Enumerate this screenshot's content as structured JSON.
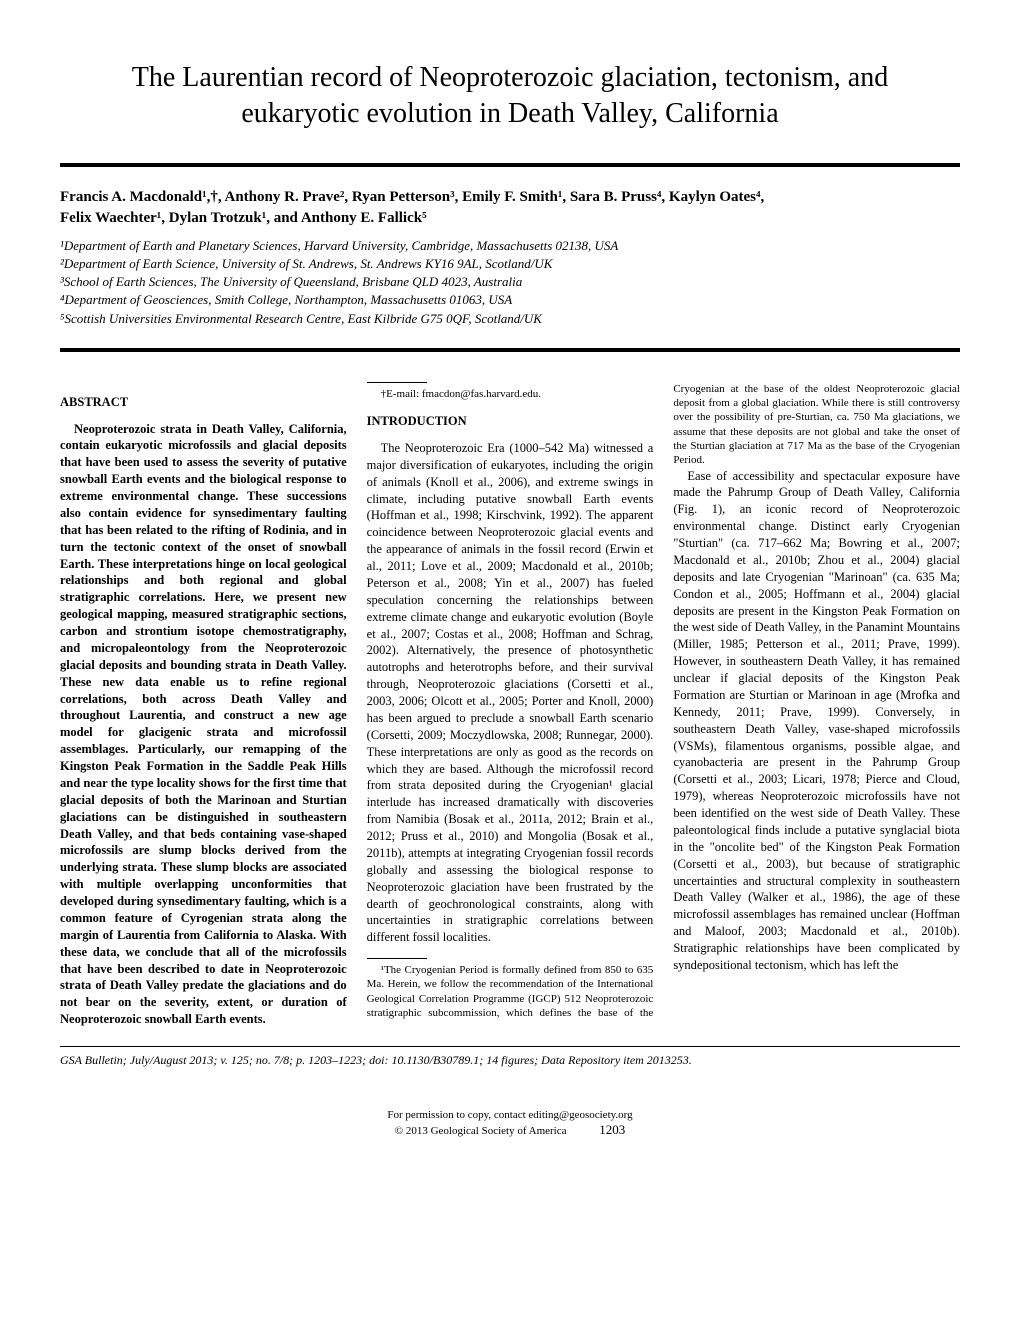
{
  "title": "The Laurentian record of Neoproterozoic glaciation, tectonism, and eukaryotic evolution in Death Valley, California",
  "authors_line1": "Francis A. Macdonald¹,†, Anthony R. Prave², Ryan Petterson³, Emily F. Smith¹, Sara B. Pruss⁴, Kaylyn Oates⁴,",
  "authors_line2": "Felix Waechter¹, Dylan Trotzuk¹, and Anthony E. Fallick⁵",
  "affiliations": {
    "a1": "¹Department of Earth and Planetary Sciences, Harvard University, Cambridge, Massachusetts 02138, USA",
    "a2": "²Department of Earth Science, University of St. Andrews, St. Andrews KY16 9AL, Scotland/UK",
    "a3": "³School of Earth Sciences, The University of Queensland, Brisbane QLD 4023, Australia",
    "a4": "⁴Department of Geosciences, Smith College, Northampton, Massachusetts 01063, USA",
    "a5": "⁵Scottish Universities Environmental Research Centre, East Kilbride G75 0QF, Scotland/UK"
  },
  "abstract_heading": "ABSTRACT",
  "abstract_body": "Neoproterozoic strata in Death Valley, California, contain eukaryotic microfossils and glacial deposits that have been used to assess the severity of putative snowball Earth events and the biological response to extreme environmental change. These successions also contain evidence for synsedimentary faulting that has been related to the rifting of Rodinia, and in turn the tectonic context of the onset of snowball Earth. These interpretations hinge on local geological relationships and both regional and global stratigraphic correlations. Here, we present new geological mapping, measured stratigraphic sections, carbon and strontium isotope chemostratigraphy, and micropaleontology from the Neoproterozoic glacial deposits and bounding strata in Death Valley. These new data enable us to refine regional correlations, both across Death Valley and throughout Laurentia, and construct a new age model for glacigenic strata and microfossil assemblages. Particularly, our remapping of the Kingston Peak Formation in the Saddle Peak Hills and near the type locality shows for the first time that glacial deposits of both the Marinoan and Sturtian glaciations can be distinguished in southeastern Death Valley, and that beds containing vase-shaped microfossils are slump blocks derived from the underlying strata. These slump blocks are associated with multiple overlapping unconformities that developed during synsedimentary faulting, which is a common feature of Cyrogenian strata along the margin of Laurentia from California to Alaska. With these data, we conclude that all of the microfossils that have been described to date in Neoproterozoic strata of Death Valley predate the glaciations and do not bear on the severity, extent, or duration of Neoproterozoic snowball Earth events.",
  "intro_heading": "INTRODUCTION",
  "intro_p1": "The Neoproterozoic Era (1000–542 Ma) witnessed a major diversification of eukaryotes, including the origin of animals (Knoll et al., 2006), and extreme swings in climate, including putative snowball Earth events (Hoffman et al., 1998; Kirschvink, 1992). The apparent coincidence between Neoproterozoic glacial events and the appearance of animals in the fossil record (Erwin et al., 2011; Love et al., 2009; Macdonald et al., 2010b; Peterson et al., 2008; Yin et al., 2007) has fueled speculation concerning the relationships between extreme climate change and eukaryotic evolution (Boyle et al., 2007; Costas et al., 2008; Hoffman and Schrag, 2002). Alternatively, the presence of photosynthetic autotrophs and heterotrophs before, and their survival through, Neoproterozoic glaciations (Corsetti et al., 2003, 2006; Olcott et al., 2005; Porter and Knoll, 2000) has been argued to preclude a snowball Earth scenario (Corsetti, 2009; Moczydlowska, 2008; Runnegar, 2000). These interpretations are only as good as the records on which they are based. Although the microfossil record from strata deposited during the Cryogenian¹ glacial interlude has increased dramatically with discoveries from Namibia (Bosak et al., 2011a, 2012; Brain et al., 2012; Pruss et al., 2010) and Mongolia (Bosak et al., 2011b), attempts at integrating Cryogenian fossil records globally and assessing the biological response to Neoproterozoic glaciation have been frustrated by the dearth of geochronological constraints, along with uncertainties in stratigraphic correlations between different fossil localities.",
  "intro_p2": "Ease of accessibility and spectacular exposure have made the Pahrump Group of Death Valley, California (Fig. 1), an iconic record of Neoproterozoic environmental change. Distinct early Cryogenian \"Sturtian\" (ca. 717–662 Ma; Bowring et al., 2007; Macdonald et al., 2010b; Zhou et al., 2004) glacial deposits and late Cryogenian \"Marinoan\" (ca. 635 Ma; Condon et al., 2005; Hoffmann et al., 2004) glacial deposits are present in the Kingston Peak Formation on the west side of Death Valley, in the Panamint Mountains (Miller, 1985; Petterson et al., 2011; Prave, 1999). However, in southeastern Death Valley, it has remained unclear if glacial deposits of the Kingston Peak Formation are Sturtian or Marinoan in age (Mrofka and Kennedy, 2011; Prave, 1999). Conversely, in southeastern Death Valley, vase-shaped microfossils (VSMs), filamentous organisms, possible algae, and cyanobacteria are present in the Pahrump Group (Corsetti et al., 2003; Licari, 1978; Pierce and Cloud, 1979), whereas Neoproterozoic microfossils have not been identified on the west side of Death Valley. These paleontological finds include a putative synglacial biota in the \"oncolite bed\" of the Kingston Peak Formation (Corsetti et al., 2003), but because of stratigraphic uncertainties and structural complexity in southeastern Death Valley (Walker et al., 1986), the age of these microfossil assemblages has remained unclear (Hoffman and Maloof, 2003; Macdonald et al., 2010b). Stratigraphic relationships have been complicated by syndepositional tectonism, which has left the",
  "footnote_email": "†E-mail: fmacdon@fas.harvard.edu.",
  "footnote_cryogenian": "¹The Cryogenian Period is formally defined from 850 to 635 Ma. Herein, we follow the recommendation of the International Geological Correlation Programme (IGCP) 512 Neoproterozoic stratigraphic subcommission, which defines the base of the Cryogenian at the base of the oldest Neoproterozoic glacial deposit from a global glaciation. While there is still controversy over the possibility of pre-Sturtian, ca. 750 Ma glaciations, we assume that these deposits are not global and take the onset of the Sturtian glaciation at 717 Ma as the base of the Cryogenian Period.",
  "citation": "GSA Bulletin; July/August 2013; v. 125; no. 7/8; p. 1203–1223; doi: 10.1130/B30789.1; 14 figures; Data Repository item 2013253.",
  "footer_line1": "For permission to copy, contact editing@geosociety.org",
  "footer_line2": "© 2013 Geological Society of America",
  "page_number": "1203"
}
